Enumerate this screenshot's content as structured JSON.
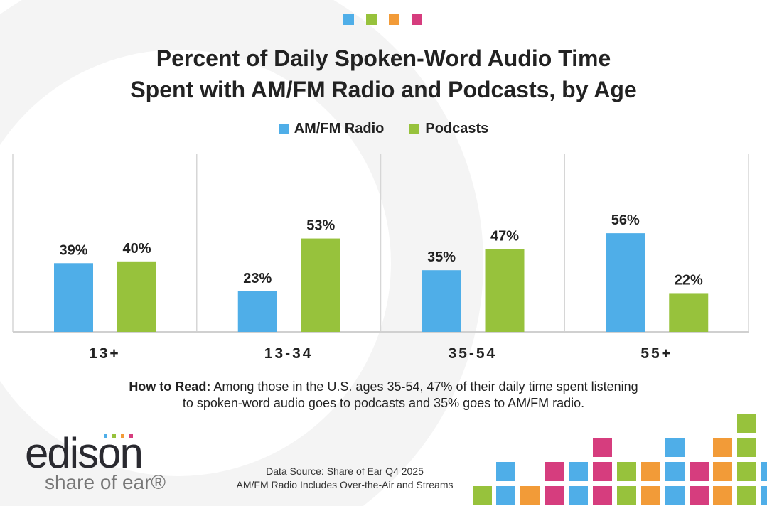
{
  "chart_data": {
    "type": "bar",
    "title": "Percent of Daily Spoken-Word Audio Time Spent with AM/FM Radio and Podcasts, by Age",
    "title_lines": [
      "Percent of Daily Spoken-Word Audio Time",
      "Spent with AM/FM Radio and Podcasts, by Age"
    ],
    "categories": [
      "13+",
      "13-34",
      "35-54",
      "55+"
    ],
    "series": [
      {
        "name": "AM/FM Radio",
        "color": "#4FAEE8",
        "values": [
          39,
          23,
          35,
          56
        ],
        "labels": [
          "39%",
          "23%",
          "35%",
          "56%"
        ]
      },
      {
        "name": "Podcasts",
        "color": "#97C23C",
        "values": [
          40,
          53,
          47,
          22
        ],
        "labels": [
          "40%",
          "53%",
          "47%",
          "22%"
        ]
      }
    ],
    "ylim": [
      0,
      60
    ],
    "legend": "top-center",
    "grid": false
  },
  "how_to_read": {
    "label": "How to Read:",
    "text": " Among those in the U.S. ages 35-54, 47% of their daily time spent listening",
    "text2": "to spoken-word audio goes to podcasts and 35% goes to AM/FM radio."
  },
  "logo": {
    "name": "edison",
    "tagline": "share of ear®"
  },
  "source": {
    "line1": "Data Source: Share of Ear Q4 2025",
    "line2": "AM/FM Radio Includes Over-the-Air and Streams"
  },
  "brand_colors": {
    "blue": "#4FAEE8",
    "green": "#97C23C",
    "orange": "#F29B38",
    "pink": "#D63D7E"
  }
}
